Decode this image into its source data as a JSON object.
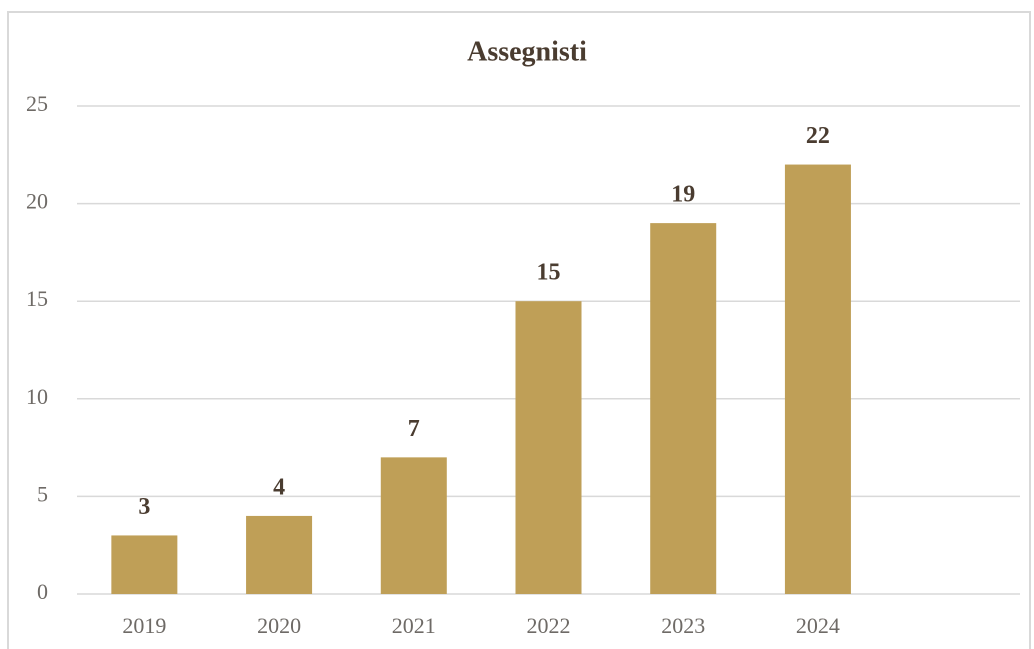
{
  "chart_data": {
    "type": "bar",
    "title": "Assegnisti",
    "categories": [
      "2019",
      "2020",
      "2021",
      "2022",
      "2023",
      "2024",
      null
    ],
    "values": [
      3,
      4,
      7,
      15,
      19,
      22,
      null
    ],
    "color": "#bf9f57",
    "ylim": [
      0,
      25
    ],
    "yticks": [
      0,
      5,
      10,
      15,
      20,
      25
    ],
    "grid": true,
    "data_labels": true
  }
}
